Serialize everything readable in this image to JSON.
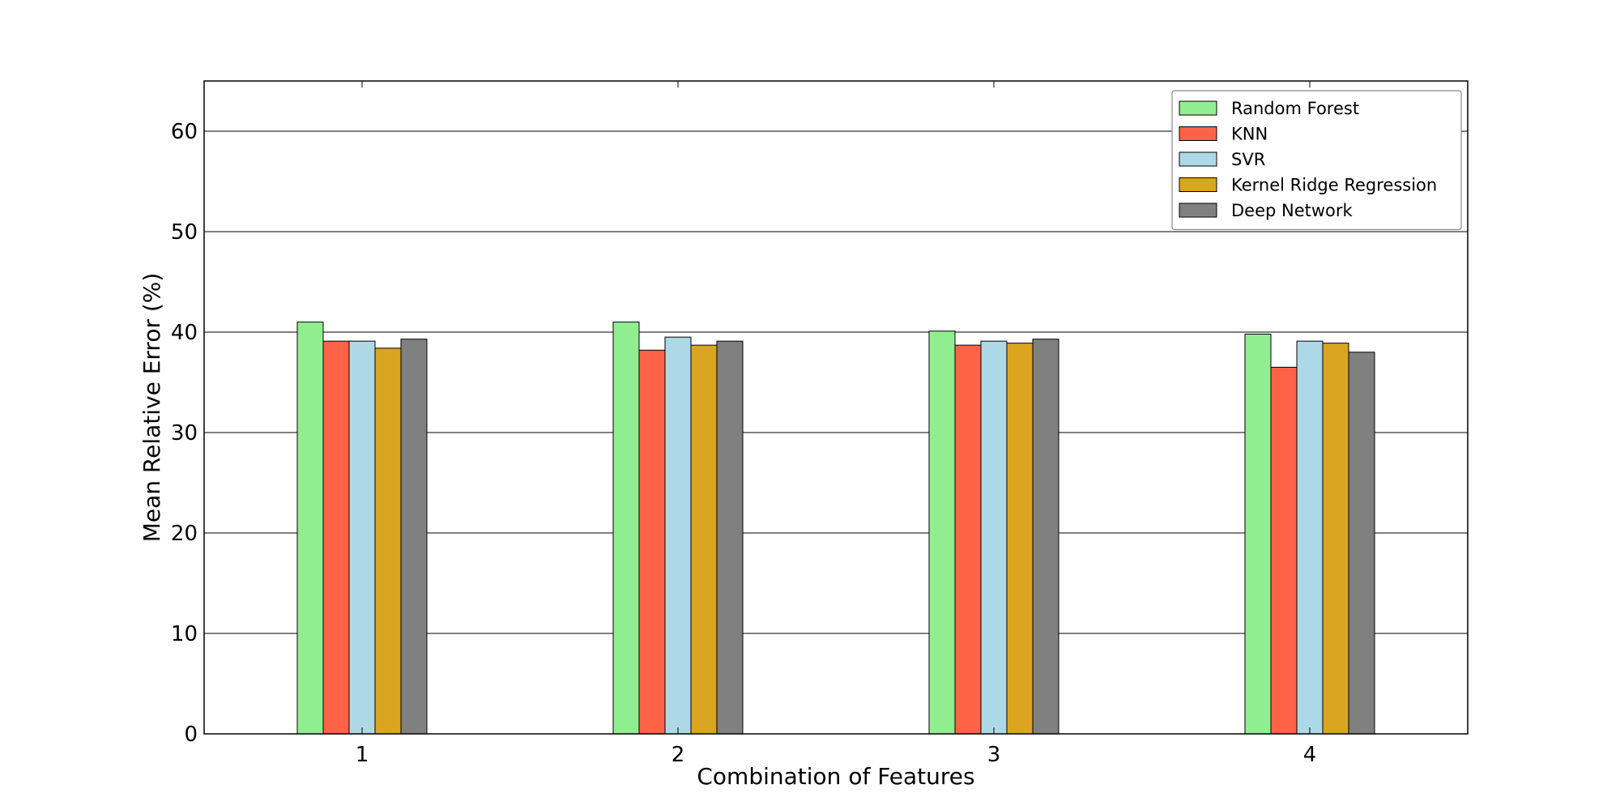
{
  "chart_data": {
    "type": "bar",
    "xlabel": "Combination of Features",
    "ylabel": "Mean Relative Error (%)",
    "categories": [
      "1",
      "2",
      "3",
      "4"
    ],
    "ylim": [
      0,
      65
    ],
    "yticks": [
      0,
      10,
      20,
      30,
      40,
      50,
      60
    ],
    "grid": "horizontal",
    "legend_position": "top-right",
    "series": [
      {
        "name": "Random Forest",
        "color": "#90EE90",
        "values": [
          41.0,
          41.0,
          40.1,
          39.8
        ]
      },
      {
        "name": "KNN",
        "color": "#FF6347",
        "values": [
          39.1,
          38.2,
          38.7,
          36.5
        ]
      },
      {
        "name": "SVR",
        "color": "#ADD8E6",
        "values": [
          39.1,
          39.5,
          39.1,
          39.1
        ]
      },
      {
        "name": "Kernel Ridge Regression",
        "color": "#DAA520",
        "values": [
          38.4,
          38.7,
          38.9,
          38.9
        ]
      },
      {
        "name": "Deep Network",
        "color": "#808080",
        "values": [
          39.3,
          39.1,
          39.3,
          38.0
        ]
      }
    ]
  }
}
